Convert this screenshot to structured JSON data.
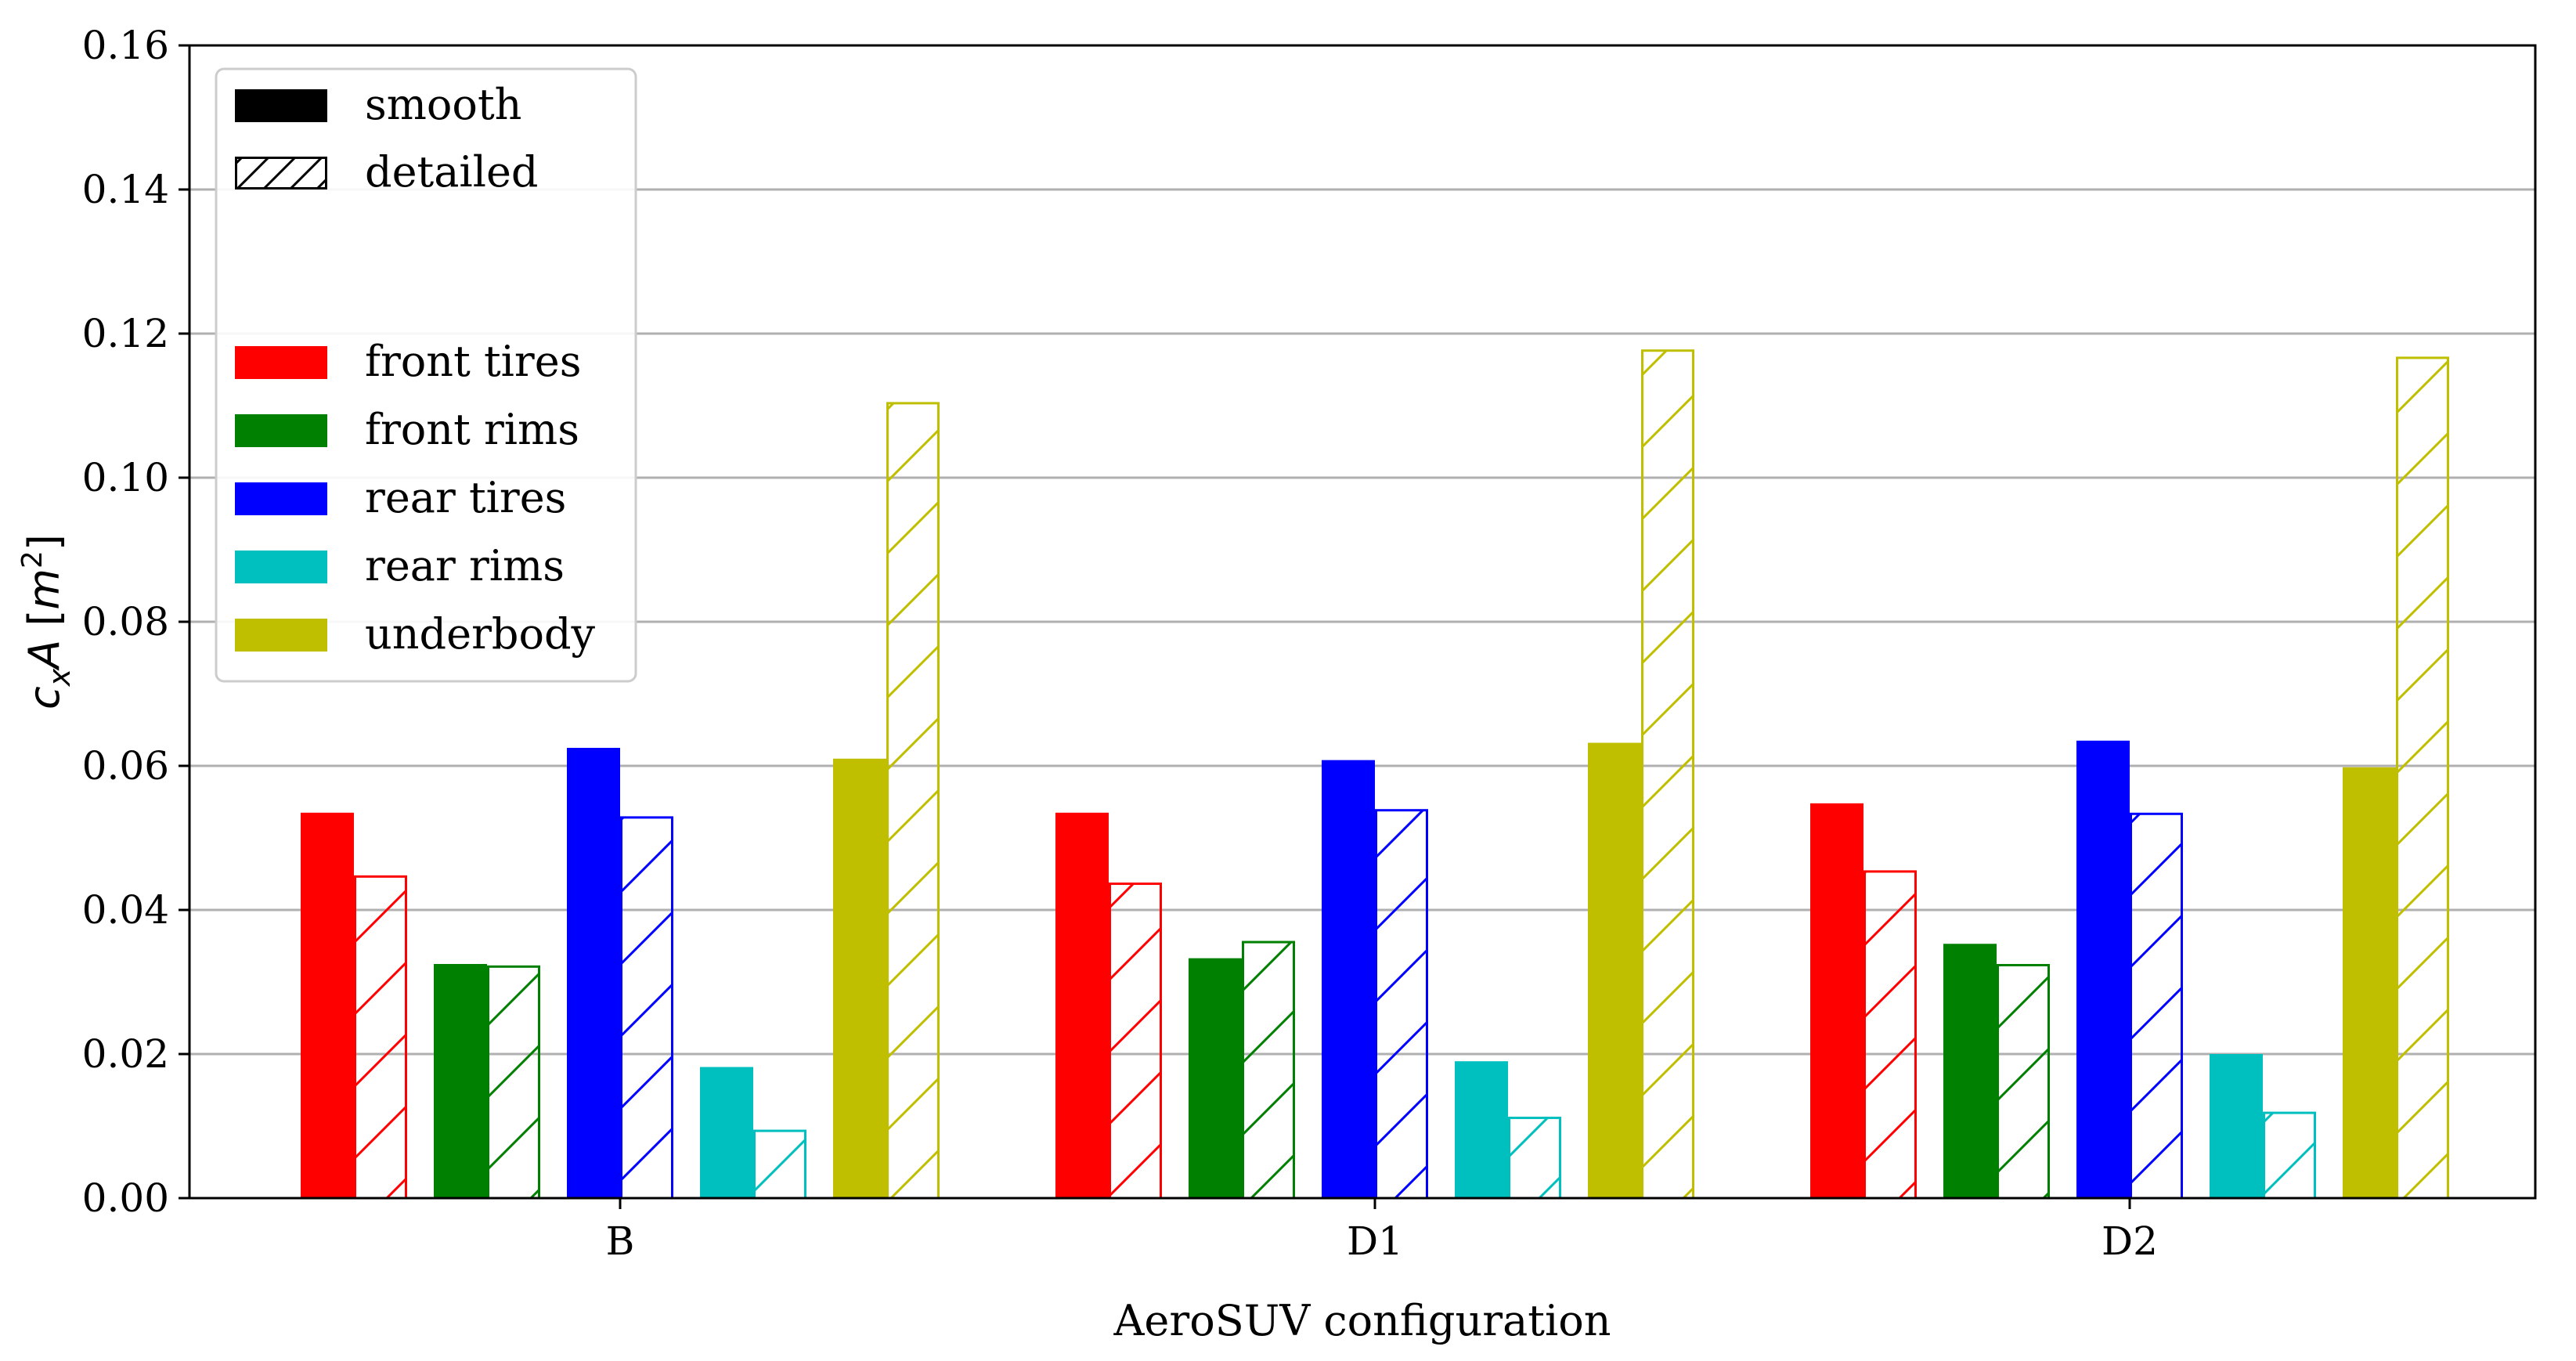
{
  "chart_data": {
    "type": "bar",
    "title": "",
    "xlabel": "AeroSUV configuration",
    "ylabel_main": "c",
    "ylabel_sub": "x",
    "ylabel_var": "A",
    "ylabel_unit_open": " [",
    "ylabel_unit": "m",
    "ylabel_unit_sup": "2",
    "ylabel_unit_close": "]",
    "ylim": [
      0,
      0.16
    ],
    "yticks": [
      "0.00",
      "0.02",
      "0.04",
      "0.06",
      "0.08",
      "0.10",
      "0.12",
      "0.14",
      "0.16"
    ],
    "grid": "horizontal",
    "categories": [
      "B",
      "D1",
      "D2"
    ],
    "legend_position": "top-left",
    "style_legend": [
      {
        "name": "smooth",
        "style": "solid"
      },
      {
        "name": "detailed",
        "style": "hatched"
      }
    ],
    "series": [
      {
        "name": "front tires",
        "color": "#ff0000",
        "smooth": [
          0.0535,
          0.0535,
          0.0548
        ],
        "detailed": [
          0.0448,
          0.0438,
          0.0455
        ]
      },
      {
        "name": "front rims",
        "color": "#008000",
        "smooth": [
          0.0325,
          0.0333,
          0.0353
        ],
        "detailed": [
          0.0323,
          0.0357,
          0.0325
        ]
      },
      {
        "name": "rear tires",
        "color": "#0000ff",
        "smooth": [
          0.0625,
          0.0608,
          0.0635
        ],
        "detailed": [
          0.053,
          0.054,
          0.0535
        ]
      },
      {
        "name": "rear rims",
        "color": "#00bfbf",
        "smooth": [
          0.0182,
          0.019,
          0.02
        ],
        "detailed": [
          0.0095,
          0.0113,
          0.012
        ]
      },
      {
        "name": "underbody",
        "color": "#bfbf00",
        "smooth": [
          0.061,
          0.0632,
          0.0598
        ],
        "detailed": [
          0.1105,
          0.1178,
          0.1168
        ]
      }
    ]
  }
}
